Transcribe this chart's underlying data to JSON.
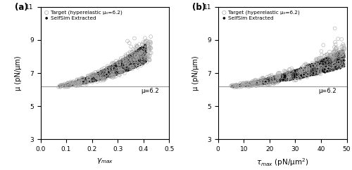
{
  "mu0": 6.2,
  "ylim": [
    3,
    11
  ],
  "yticks": [
    3,
    5,
    7,
    9,
    11
  ],
  "ylabel": "μ (pN/μm)",
  "panel_a": {
    "label": "(a)",
    "xlim": [
      0,
      0.5
    ],
    "xticks": [
      0,
      0.1,
      0.2,
      0.3,
      0.4,
      0.5
    ],
    "hline_label": "μ=6.2",
    "hline_x": 0.46
  },
  "panel_b": {
    "label": "(b)",
    "xlim": [
      0,
      50
    ],
    "xticks": [
      0,
      10,
      20,
      30,
      40,
      50
    ],
    "hline_label": "μ=6.2",
    "hline_x": 46
  },
  "legend_target_label": "Target (hyperelastic μ₀=6.2)",
  "legend_selfsim_label": "SelfSim Extracted",
  "target_color": "#aaaaaa",
  "selfsim_color": "#111111",
  "hline_color": "#999999",
  "target_ms": 3.5,
  "selfsim_ms": 2.5
}
